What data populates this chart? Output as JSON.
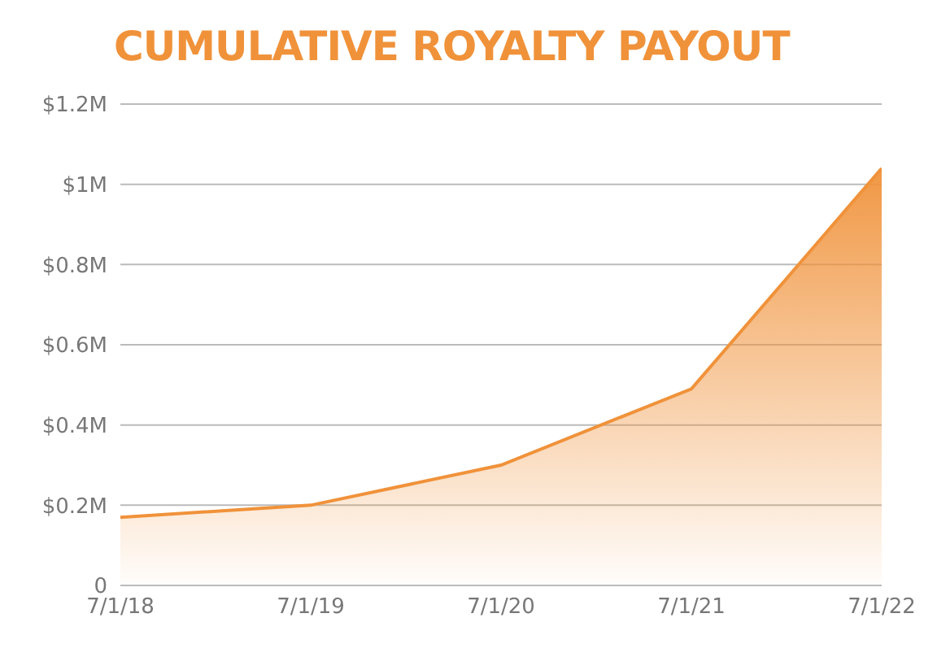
{
  "chart_data": {
    "type": "area",
    "title": "CUMULATIVE ROYALTY PAYOUT",
    "categories": [
      "7/1/18",
      "7/1/19",
      "7/1/20",
      "7/1/21",
      "7/1/22"
    ],
    "series": [
      {
        "color": "#f0923a",
        "values": [
          0.17,
          0.2,
          0.3,
          0.49,
          1.04
        ]
      }
    ],
    "ylim": [
      0,
      1.2
    ],
    "yticks": [
      {
        "value": 0,
        "label": "0"
      },
      {
        "value": 0.2,
        "label": "$0.2M"
      },
      {
        "value": 0.4,
        "label": "$0.4M"
      },
      {
        "value": 0.6,
        "label": "$0.6M"
      },
      {
        "value": 0.8,
        "label": "$0.8M"
      },
      {
        "value": 1,
        "label": "$1M"
      },
      {
        "value": 1.2,
        "label": "$1.2M"
      }
    ],
    "grid": "y",
    "legend": false
  }
}
